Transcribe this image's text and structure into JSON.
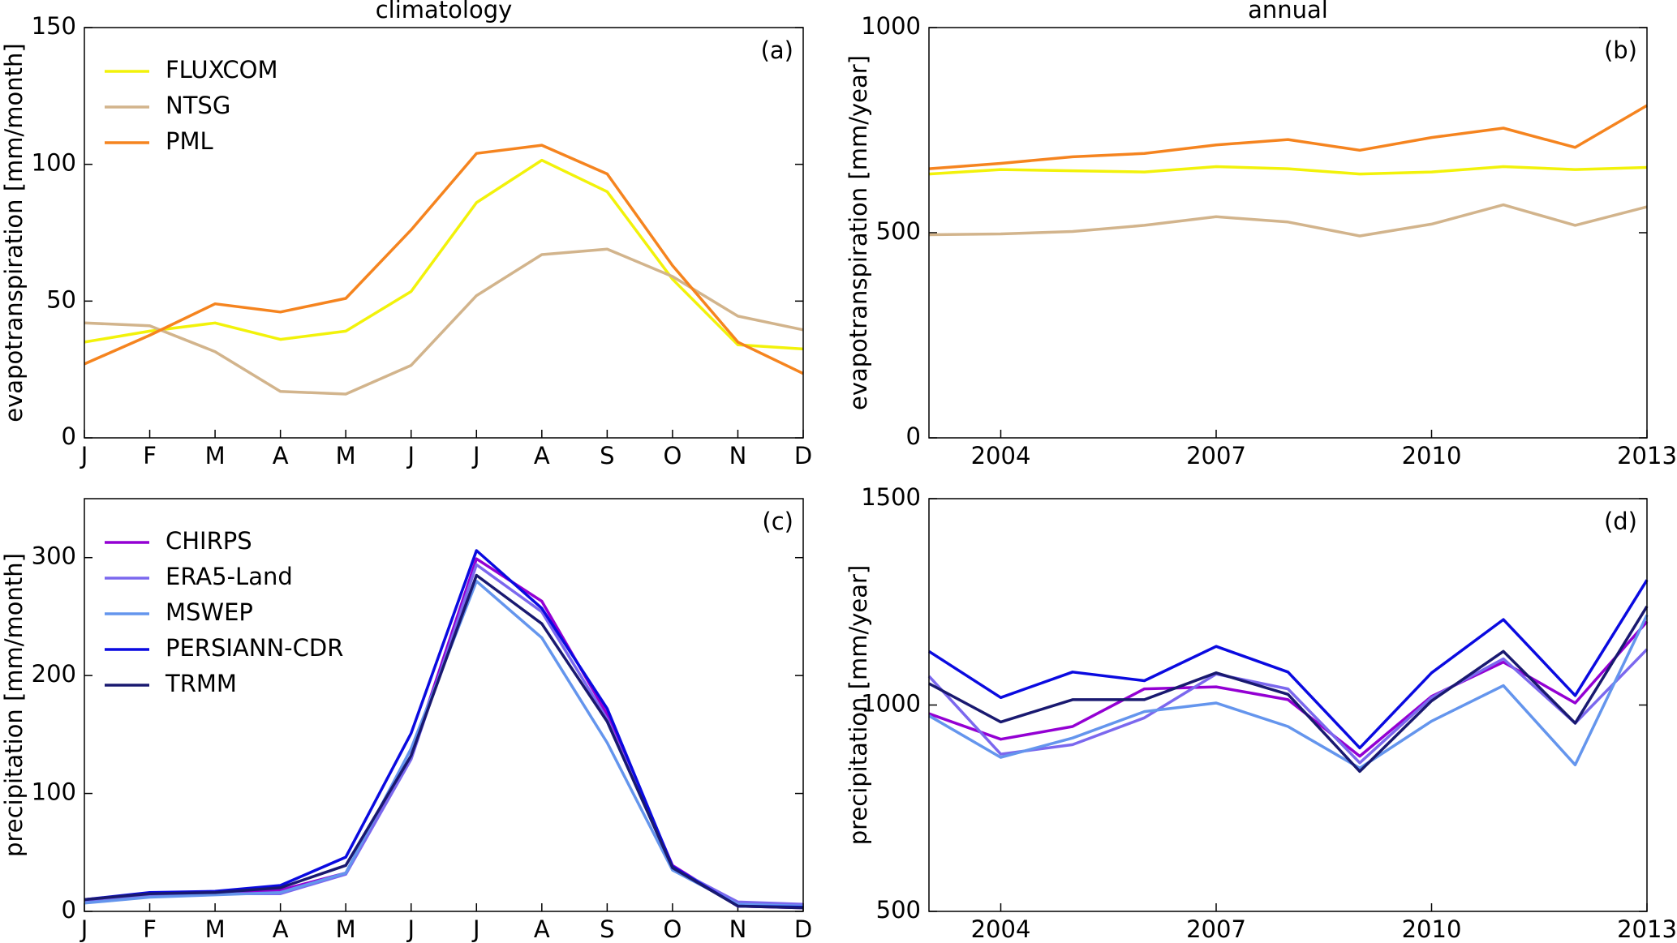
{
  "chart_data": [
    {
      "type": "line",
      "title": "climatology",
      "panel_label": "(a)",
      "ylabel": "evapotranspiration [mm/month]",
      "categories": [
        "J",
        "F",
        "M",
        "A",
        "M",
        "J",
        "J",
        "A",
        "S",
        "O",
        "N",
        "D"
      ],
      "ylim": [
        0,
        150
      ],
      "yticks": [
        0,
        50,
        100,
        150
      ],
      "legend": "upper left",
      "series": [
        {
          "name": "FLUXCOM",
          "color": "#f2f20a",
          "values": [
            35,
            39,
            42,
            36,
            39,
            53.5,
            86,
            101.5,
            90,
            58,
            34,
            32.5
          ]
        },
        {
          "name": "NTSG",
          "color": "#d2b48c",
          "values": [
            42,
            41,
            31.5,
            17,
            16,
            26.5,
            52,
            67,
            69,
            59,
            44.5,
            39.5
          ]
        },
        {
          "name": "PML",
          "color": "#f5841f",
          "values": [
            27,
            37.5,
            49,
            46,
            51,
            76,
            104,
            107,
            96.5,
            63,
            35,
            23.5
          ]
        }
      ]
    },
    {
      "type": "line",
      "title": "annual",
      "panel_label": "(b)",
      "ylabel": "evapotranspiration [mm/year]",
      "x": [
        2003,
        2004,
        2005,
        2006,
        2007,
        2008,
        2009,
        2010,
        2011,
        2012,
        2013
      ],
      "xlim": [
        2003,
        2013
      ],
      "xticks": [
        2004,
        2007,
        2010,
        2013
      ],
      "ylim": [
        0,
        1000
      ],
      "yticks": [
        0,
        500,
        1000
      ],
      "series": [
        {
          "color": "#f2f20a",
          "values": [
            643,
            654,
            651,
            648,
            661,
            656,
            643,
            648,
            661,
            654,
            659
          ]
        },
        {
          "color": "#d2b48c",
          "values": [
            495,
            497,
            503,
            518,
            539,
            526,
            492,
            521,
            568,
            518,
            563
          ]
        },
        {
          "color": "#f5841f",
          "values": [
            656,
            669,
            685,
            693,
            714,
            727,
            701,
            732,
            755,
            708,
            810
          ]
        }
      ]
    },
    {
      "type": "line",
      "panel_label": "(c)",
      "ylabel": "precipitation [mm/month]",
      "categories": [
        "J",
        "F",
        "M",
        "A",
        "M",
        "J",
        "J",
        "A",
        "S",
        "O",
        "N",
        "D"
      ],
      "ylim": [
        0,
        350
      ],
      "yticks": [
        0,
        100,
        200,
        300
      ],
      "legend": "upper left",
      "series": [
        {
          "name": "CHIRPS",
          "color": "#9400d3",
          "values": [
            10,
            15,
            16,
            18,
            32.5,
            132,
            299,
            263,
            167,
            39,
            4.5,
            3
          ]
        },
        {
          "name": "ERA5-Land",
          "color": "#7b68ee",
          "values": [
            9,
            13.5,
            15,
            15,
            31.5,
            129,
            294,
            254,
            163,
            37,
            8,
            6
          ]
        },
        {
          "name": "MSWEP",
          "color": "#6495ed",
          "values": [
            7,
            12,
            14,
            16,
            32.5,
            138,
            280,
            232,
            143,
            35,
            6,
            4.5
          ]
        },
        {
          "name": "PERSIANN-CDR",
          "color": "#0a0ae0",
          "values": [
            10,
            16,
            17,
            22,
            46,
            151,
            306,
            257,
            172,
            38,
            4.5,
            3.5
          ]
        },
        {
          "name": "TRMM",
          "color": "#191970",
          "values": [
            10,
            15,
            16,
            20,
            39,
            132,
            285,
            244,
            161,
            37,
            4.5,
            3
          ]
        }
      ]
    },
    {
      "type": "line",
      "panel_label": "(d)",
      "ylabel": "precipitation [mm/year]",
      "x": [
        2003,
        2004,
        2005,
        2006,
        2007,
        2008,
        2009,
        2010,
        2011,
        2012,
        2013
      ],
      "xlim": [
        2003,
        2013
      ],
      "xticks": [
        2004,
        2007,
        2010,
        2013
      ],
      "ylim": [
        500,
        1500
      ],
      "yticks": [
        500,
        1000,
        1500
      ],
      "series": [
        {
          "color": "#9400d3",
          "values": [
            979,
            917,
            948,
            1039,
            1044,
            1013,
            876,
            1021,
            1104,
            1005,
            1202
          ]
        },
        {
          "color": "#7b68ee",
          "values": [
            1070,
            881,
            904,
            969,
            1075,
            1039,
            860,
            1018,
            1112,
            956,
            1135
          ]
        },
        {
          "color": "#6495ed",
          "values": [
            974,
            873,
            920,
            984,
            1005,
            948,
            847,
            961,
            1047,
            855,
            1218
          ]
        },
        {
          "color": "#0a0ae0",
          "values": [
            1130,
            1018,
            1080,
            1059,
            1142,
            1080,
            896,
            1078,
            1207,
            1023,
            1303
          ]
        },
        {
          "color": "#191970",
          "values": [
            1052,
            959,
            1013,
            1013,
            1078,
            1026,
            839,
            1010,
            1130,
            956,
            1239
          ]
        }
      ]
    }
  ]
}
